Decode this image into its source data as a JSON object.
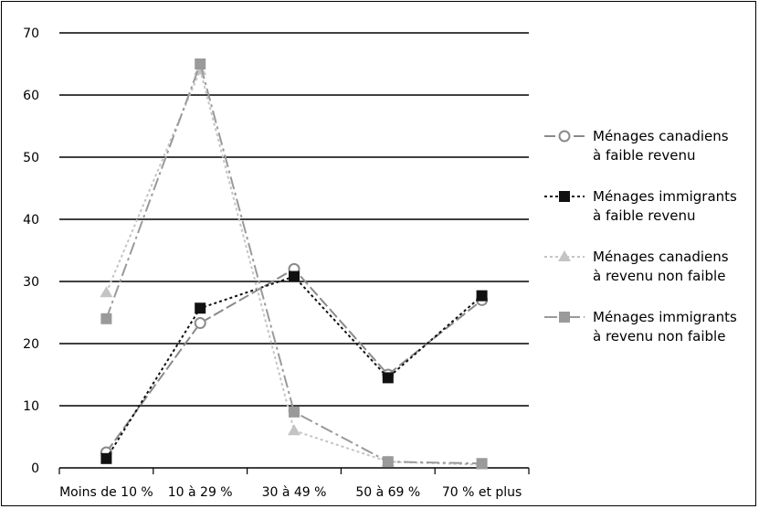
{
  "chart_data": {
    "type": "line",
    "categories": [
      "Moins de 10 %",
      "10 à 29 %",
      "30 à 49 %",
      "50 à 69 %",
      "70 % et plus"
    ],
    "ylim": [
      0,
      70
    ],
    "yticks": [
      0,
      10,
      20,
      30,
      40,
      50,
      60,
      70
    ],
    "grid": true,
    "legend_position": "right",
    "series": [
      {
        "name_lines": [
          "Ménages canadiens",
          "à faible revenu"
        ],
        "values": [
          2.5,
          23.3,
          32,
          15,
          27
        ],
        "color": "#8a8a8a",
        "marker": "circle-open",
        "dash": "12 4"
      },
      {
        "name_lines": [
          "Ménages immigrants",
          "à faible revenu"
        ],
        "values": [
          1.5,
          25.7,
          30.8,
          14.5,
          27.7
        ],
        "color": "#111111",
        "marker": "square",
        "dash": "3 3"
      },
      {
        "name_lines": [
          "Ménages canadiens",
          "à revenu non faible"
        ],
        "values": [
          28.2,
          64,
          6,
          1,
          0.5
        ],
        "color": "#c4c4c4",
        "marker": "triangle",
        "dash": "3 3"
      },
      {
        "name_lines": [
          "Ménages immigrants",
          "à revenu non faible"
        ],
        "values": [
          24,
          65,
          9,
          1,
          0.7
        ],
        "color": "#9a9a9a",
        "marker": "square",
        "dash": "14 4 3 4"
      }
    ]
  }
}
